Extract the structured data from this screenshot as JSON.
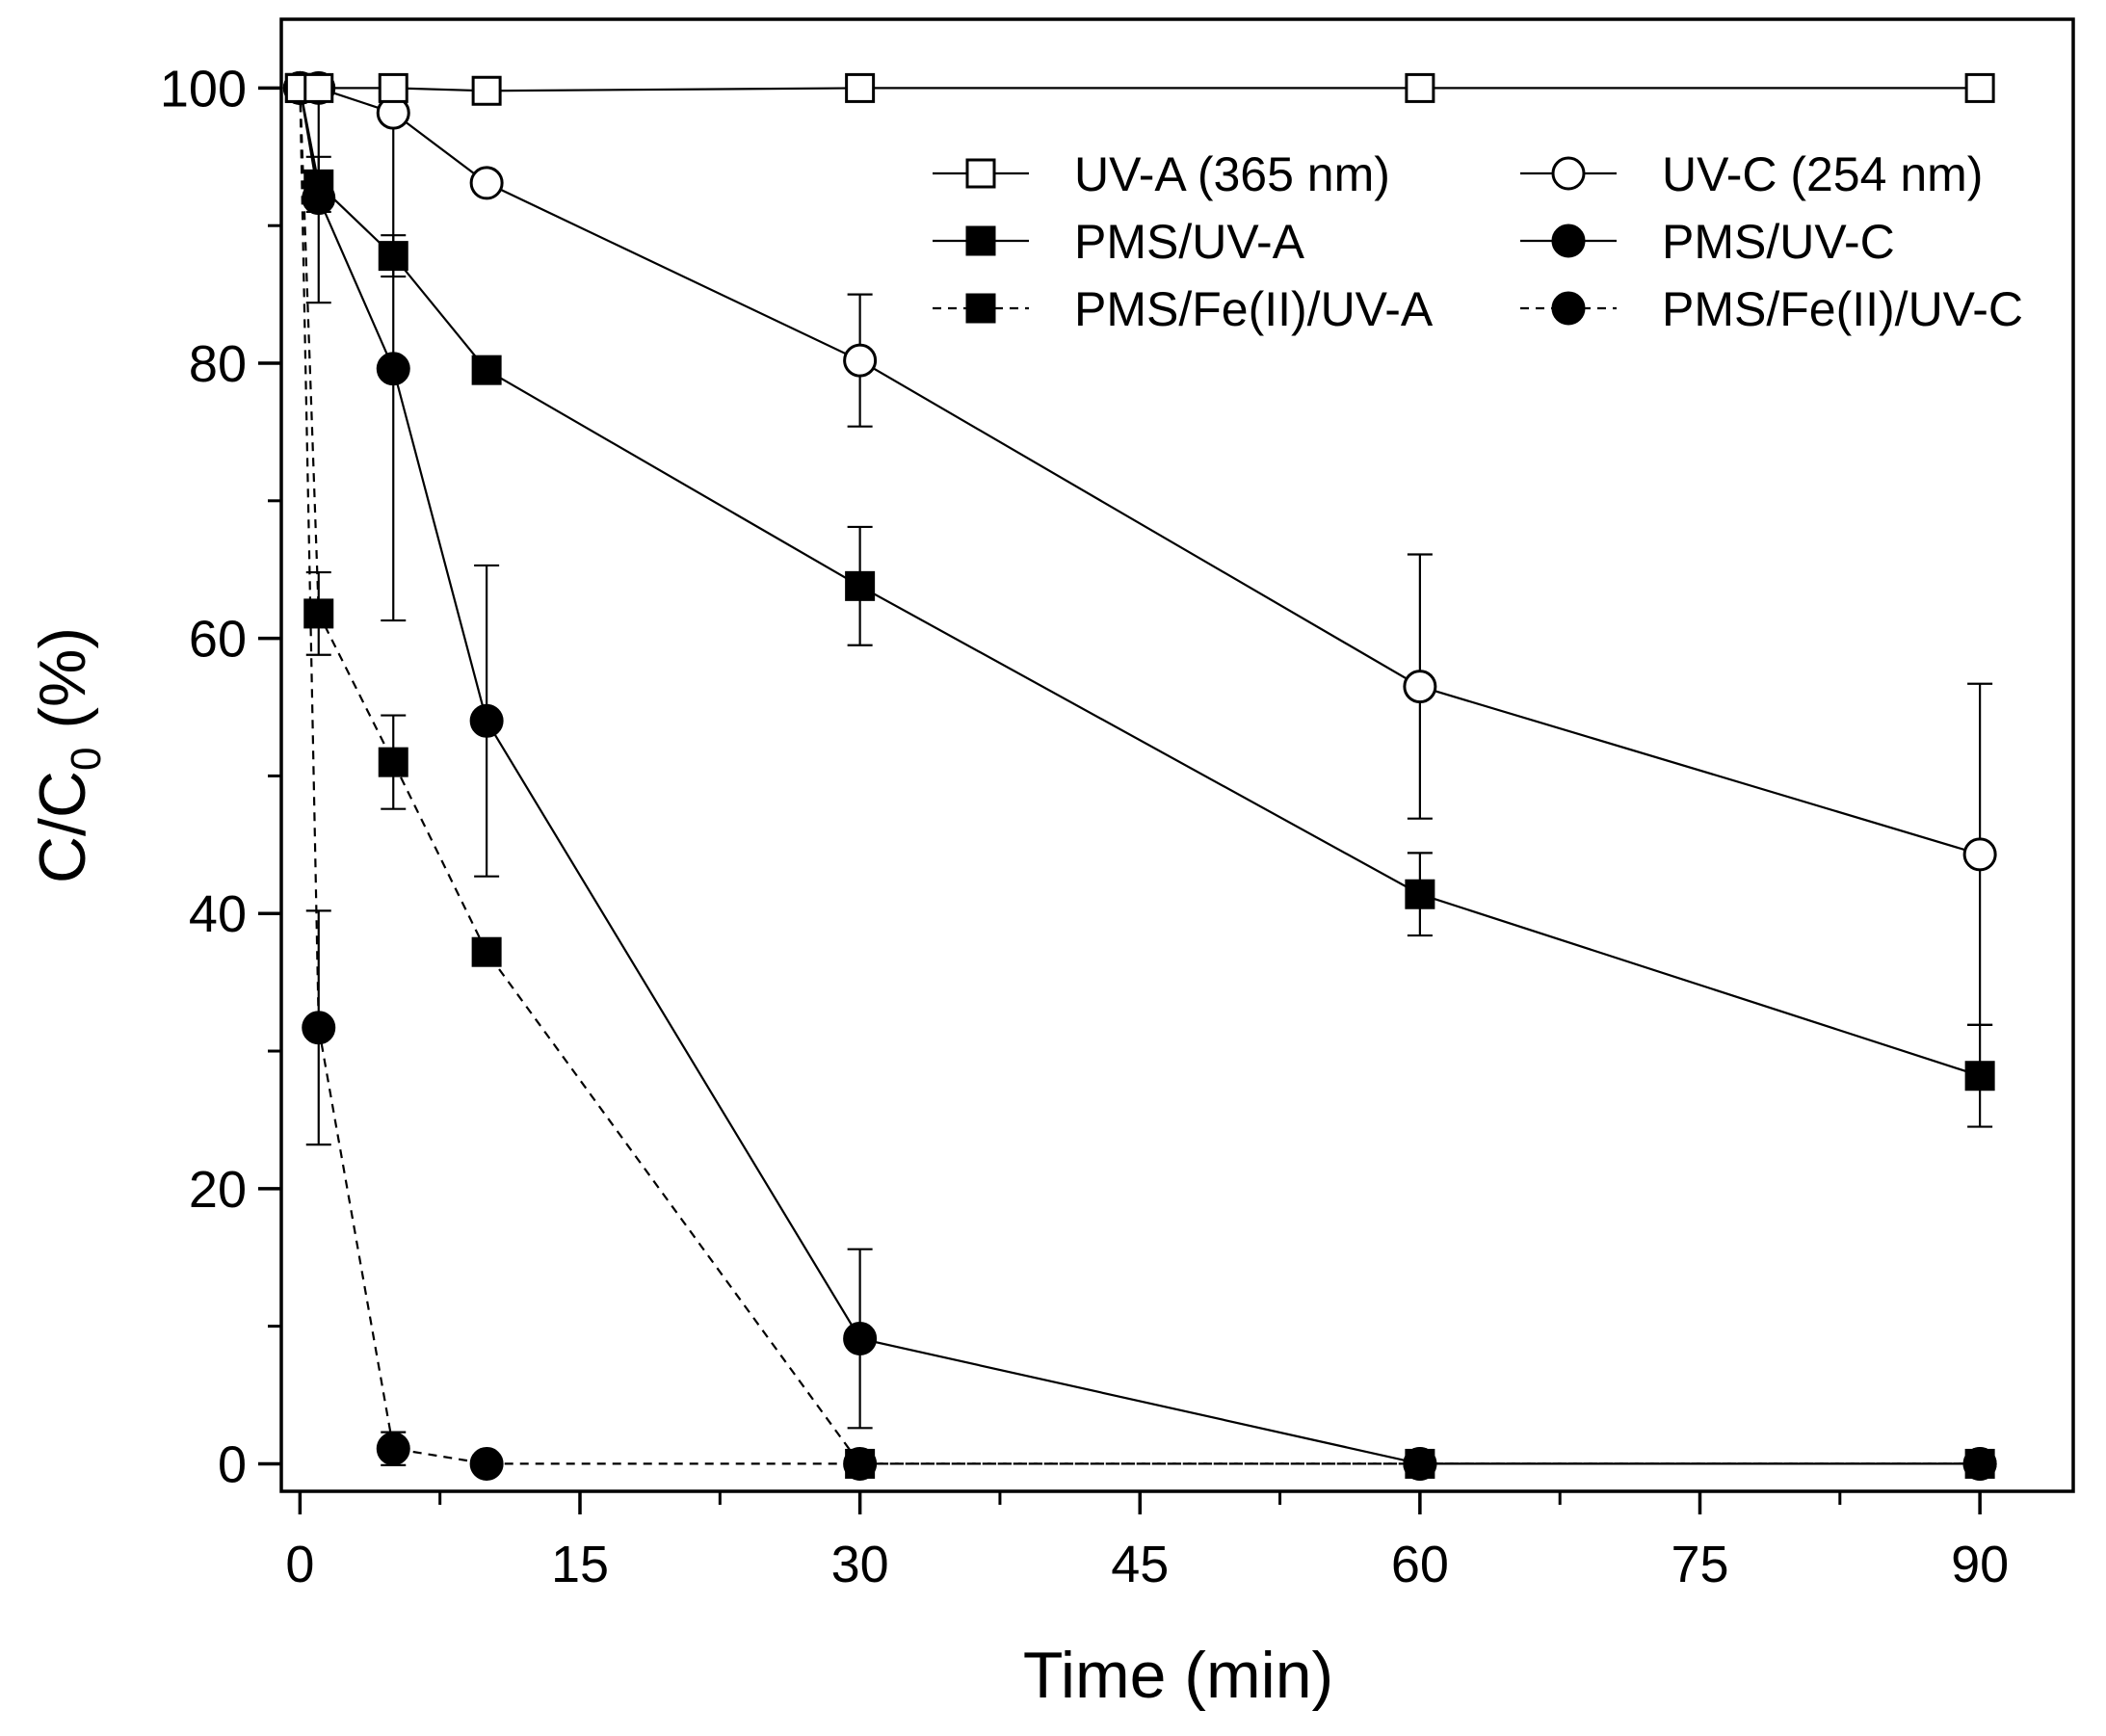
{
  "chart_data": {
    "type": "line",
    "title": "",
    "xlabel": "Time (min)",
    "ylabel_main": "C/C",
    "ylabel_sub": "0",
    "ylabel_unit": " (%)",
    "xlim": [
      -1,
      95
    ],
    "ylim": [
      -2,
      105
    ],
    "xticks": [
      0,
      15,
      30,
      45,
      60,
      75,
      90
    ],
    "xtick_labels": [
      "0",
      "15",
      "30",
      "45",
      "60",
      "75",
      "90"
    ],
    "yticks": [
      0,
      20,
      40,
      60,
      80,
      100
    ],
    "ytick_labels": [
      "0",
      "20",
      "40",
      "60",
      "80",
      "100"
    ],
    "legend_position": "top-right",
    "series": [
      {
        "name": "UV-A (365 nm)",
        "marker": "square",
        "filled": false,
        "dashed": false,
        "x": [
          0,
          1,
          5,
          10,
          30,
          60,
          90
        ],
        "y": [
          100,
          100,
          100,
          99.8,
          100,
          100,
          100
        ],
        "err": [
          0,
          0,
          0,
          0,
          0,
          0,
          0
        ]
      },
      {
        "name": "UV-C (254 nm)",
        "marker": "circle",
        "filled": false,
        "dashed": false,
        "x": [
          0,
          1,
          5,
          10,
          30,
          60,
          90
        ],
        "y": [
          100,
          100,
          98.2,
          93.1,
          80.2,
          56.5,
          44.3
        ],
        "err": [
          0,
          0,
          0,
          0,
          4.8,
          9.6,
          12.4
        ]
      },
      {
        "name": "PMS/UV-A",
        "marker": "square",
        "filled": true,
        "dashed": false,
        "x": [
          0,
          1,
          5,
          10,
          30,
          60,
          90
        ],
        "y": [
          100,
          93.0,
          87.8,
          79.5,
          63.8,
          41.4,
          28.2
        ],
        "err": [
          0,
          2.0,
          1.5,
          0,
          4.3,
          3.0,
          3.7
        ]
      },
      {
        "name": "PMS/UV-C",
        "marker": "circle",
        "filled": true,
        "dashed": false,
        "x": [
          0,
          1,
          5,
          10,
          30,
          60,
          90
        ],
        "y": [
          100,
          92.0,
          79.6,
          54.0,
          9.1,
          0,
          0
        ],
        "err": [
          0,
          7.6,
          18.3,
          11.3,
          6.5,
          0,
          0
        ]
      },
      {
        "name": "PMS/Fe(II)/UV-A",
        "marker": "square",
        "filled": true,
        "dashed": true,
        "x": [
          0,
          1,
          5,
          10,
          30,
          60,
          90
        ],
        "y": [
          100,
          61.8,
          51.0,
          37.2,
          0,
          0,
          0
        ],
        "err": [
          0,
          3.0,
          3.4,
          0,
          0,
          0,
          0
        ]
      },
      {
        "name": "PMS/Fe(II)/UV-C",
        "marker": "circle",
        "filled": true,
        "dashed": true,
        "x": [
          0,
          1,
          5,
          10,
          30,
          60,
          90
        ],
        "y": [
          100,
          31.7,
          1.1,
          0,
          0,
          0,
          0
        ],
        "err": [
          0,
          8.5,
          1.2,
          0,
          0,
          0,
          0
        ]
      }
    ]
  }
}
